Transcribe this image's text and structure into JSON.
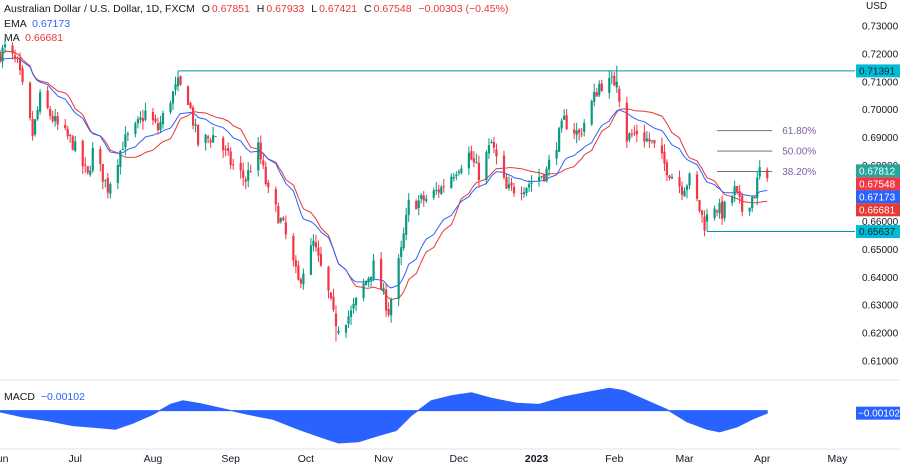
{
  "header": {
    "title": "Australian Dollar / U.S. Dollar, 1D, FXCM",
    "ohlc": [
      {
        "label": "O",
        "value": "0.67851"
      },
      {
        "label": "H",
        "value": "0.67933"
      },
      {
        "label": "L",
        "value": "0.67421"
      },
      {
        "label": "C",
        "value": "0.67548"
      }
    ],
    "change": "−0.00303 (−0.45%)",
    "ema_label": "EMA",
    "ema_value": "0.67173",
    "ma_label": "MA",
    "ma_value": "0.66681"
  },
  "macd": {
    "label": "MACD",
    "value": "−0.00102",
    "axis_value": "−0.00102"
  },
  "colors": {
    "up": "#089981",
    "down": "#f23645",
    "ema": "#2962ff",
    "ma": "#e53935",
    "macd_fill": "#2962ff",
    "level_line": "#0097a7",
    "fib": "#7b5ea7"
  },
  "chart_data": {
    "type": "candlestick",
    "symbol": "AUD/USD",
    "timeframe": "1D",
    "currency_label": "USD",
    "ylim": [
      0.605,
      0.735
    ],
    "y_ticks": [
      0.61,
      0.62,
      0.63,
      0.64,
      0.65,
      0.66,
      0.67,
      0.68,
      0.69,
      0.7,
      0.71,
      0.72,
      0.73
    ],
    "y_tick_labels": [
      "0.61000",
      "0.62000",
      "0.63000",
      "0.64000",
      "0.65000",
      "0.66000",
      "0.67000",
      "0.68000",
      "0.69000",
      "0.70000",
      "0.71000",
      "0.72000",
      "0.73000"
    ],
    "x_range": [
      "2022-06-01",
      "2023-05-08"
    ],
    "x_ticks": [
      {
        "date": "2022-06-01",
        "label": "Jun"
      },
      {
        "date": "2022-07-01",
        "label": "Jul"
      },
      {
        "date": "2022-08-01",
        "label": "Aug"
      },
      {
        "date": "2022-09-01",
        "label": "Sep"
      },
      {
        "date": "2022-10-01",
        "label": "Oct"
      },
      {
        "date": "2022-11-01",
        "label": "Nov"
      },
      {
        "date": "2022-12-01",
        "label": "Dec"
      },
      {
        "date": "2023-01-01",
        "label": "2023",
        "bold": true
      },
      {
        "date": "2023-02-01",
        "label": "Feb"
      },
      {
        "date": "2023-03-01",
        "label": "Mar"
      },
      {
        "date": "2023-04-01",
        "label": "Apr"
      },
      {
        "date": "2023-05-01",
        "label": "May"
      }
    ],
    "anchors": [
      [
        "2022-06-01",
        0.72
      ],
      [
        "2022-06-03",
        0.722
      ],
      [
        "2022-06-08",
        0.716
      ],
      [
        "2022-06-14",
        0.691
      ],
      [
        "2022-06-17",
        0.704
      ],
      [
        "2022-06-24",
        0.694
      ],
      [
        "2022-06-30",
        0.688
      ],
      [
        "2022-07-06",
        0.676
      ],
      [
        "2022-07-08",
        0.685
      ],
      [
        "2022-07-14",
        0.672
      ],
      [
        "2022-07-20",
        0.688
      ],
      [
        "2022-07-25",
        0.693
      ],
      [
        "2022-07-29",
        0.699
      ],
      [
        "2022-08-03",
        0.693
      ],
      [
        "2022-08-08",
        0.704
      ],
      [
        "2022-08-11",
        0.709
      ],
      [
        "2022-08-15",
        0.704
      ],
      [
        "2022-08-19",
        0.688
      ],
      [
        "2022-08-26",
        0.691
      ],
      [
        "2022-09-01",
        0.681
      ],
      [
        "2022-09-07",
        0.675
      ],
      [
        "2022-09-12",
        0.686
      ],
      [
        "2022-09-16",
        0.67
      ],
      [
        "2022-09-22",
        0.658
      ],
      [
        "2022-09-28",
        0.638
      ],
      [
        "2022-10-04",
        0.652
      ],
      [
        "2022-10-10",
        0.634
      ],
      [
        "2022-10-13",
        0.622
      ],
      [
        "2022-10-19",
        0.627
      ],
      [
        "2022-10-24",
        0.637
      ],
      [
        "2022-10-28",
        0.644
      ],
      [
        "2022-11-03",
        0.628
      ],
      [
        "2022-11-08",
        0.649
      ],
      [
        "2022-11-11",
        0.666
      ],
      [
        "2022-11-18",
        0.668
      ],
      [
        "2022-11-24",
        0.672
      ],
      [
        "2022-11-30",
        0.679
      ],
      [
        "2022-12-05",
        0.684
      ],
      [
        "2022-12-09",
        0.677
      ],
      [
        "2022-12-14",
        0.688
      ],
      [
        "2022-12-20",
        0.671
      ],
      [
        "2022-12-28",
        0.673
      ],
      [
        "2023-01-05",
        0.678
      ],
      [
        "2023-01-12",
        0.696
      ],
      [
        "2023-01-18",
        0.691
      ],
      [
        "2023-01-26",
        0.709
      ],
      [
        "2023-02-02",
        0.71
      ],
      [
        "2023-02-06",
        0.69
      ],
      [
        "2023-02-10",
        0.692
      ],
      [
        "2023-02-16",
        0.688
      ],
      [
        "2023-02-22",
        0.679
      ],
      [
        "2023-02-28",
        0.672
      ],
      [
        "2023-03-03",
        0.675
      ],
      [
        "2023-03-09",
        0.659
      ],
      [
        "2023-03-13",
        0.666
      ],
      [
        "2023-03-16",
        0.663
      ],
      [
        "2023-03-21",
        0.671
      ],
      [
        "2023-03-24",
        0.664
      ],
      [
        "2023-03-29",
        0.67
      ],
      [
        "2023-03-31",
        0.6785
      ],
      [
        "2023-04-03",
        0.6755
      ]
    ],
    "emphasized_candles": [
      {
        "date": "2023-02-02",
        "open": 0.708,
        "high": 0.7158,
        "low": 0.706,
        "close": 0.71
      },
      {
        "date": "2023-03-10",
        "open": 0.66,
        "high": 0.6645,
        "low": 0.6564,
        "close": 0.6625
      },
      {
        "date": "2022-10-13",
        "open": 0.627,
        "high": 0.63,
        "low": 0.617,
        "close": 0.6225
      }
    ],
    "last_candle": {
      "date": "2023-04-03",
      "open": 0.67851,
      "high": 0.67933,
      "low": 0.67421,
      "close": 0.67548
    },
    "levels": [
      {
        "value": 0.71391,
        "label": "0.71391",
        "from": "2022-08-11",
        "to_axis": true
      },
      {
        "value": 0.65637,
        "label": "0.65637",
        "from": "2023-03-10",
        "to_axis": true
      }
    ],
    "fibonacci": [
      {
        "label": "38.20%",
        "value": 0.6779
      },
      {
        "label": "50.00%",
        "value": 0.6852
      },
      {
        "label": "61.80%",
        "value": 0.6925
      }
    ],
    "fib_span": [
      "2023-03-14",
      "2023-04-05"
    ],
    "price_badges": [
      {
        "value": 0.67812,
        "label": "0.67812",
        "color": "#26a69a"
      },
      {
        "value": 0.67548,
        "label": "0.67548",
        "color": "#f23645"
      },
      {
        "value": 0.67173,
        "label": "0.67173",
        "color": "#2962ff"
      },
      {
        "value": 0.66681,
        "label": "0.66681",
        "color": "#e53935"
      }
    ],
    "macd_series": [
      [
        "2022-06-01",
        -0.0005
      ],
      [
        "2022-06-10",
        -0.0025
      ],
      [
        "2022-06-20",
        -0.004
      ],
      [
        "2022-06-30",
        -0.006
      ],
      [
        "2022-07-10",
        -0.0068
      ],
      [
        "2022-07-17",
        -0.0075
      ],
      [
        "2022-07-24",
        -0.005
      ],
      [
        "2022-08-01",
        -0.0015
      ],
      [
        "2022-08-08",
        0.0025
      ],
      [
        "2022-08-13",
        0.004
      ],
      [
        "2022-08-20",
        0.0028
      ],
      [
        "2022-08-30",
        0.0005
      ],
      [
        "2022-09-08",
        -0.0015
      ],
      [
        "2022-09-18",
        -0.0035
      ],
      [
        "2022-09-28",
        -0.0075
      ],
      [
        "2022-10-08",
        -0.011
      ],
      [
        "2022-10-14",
        -0.013
      ],
      [
        "2022-10-22",
        -0.0125
      ],
      [
        "2022-10-30",
        -0.01
      ],
      [
        "2022-11-06",
        -0.008
      ],
      [
        "2022-11-12",
        -0.002
      ],
      [
        "2022-11-20",
        0.004
      ],
      [
        "2022-11-28",
        0.006
      ],
      [
        "2022-12-06",
        0.0072
      ],
      [
        "2022-12-14",
        0.005
      ],
      [
        "2022-12-24",
        0.003
      ],
      [
        "2023-01-02",
        0.0025
      ],
      [
        "2023-01-12",
        0.0055
      ],
      [
        "2023-01-22",
        0.0075
      ],
      [
        "2023-01-30",
        0.009
      ],
      [
        "2023-02-05",
        0.008
      ],
      [
        "2023-02-14",
        0.004
      ],
      [
        "2023-02-22",
        0.0005
      ],
      [
        "2023-03-02",
        -0.0045
      ],
      [
        "2023-03-10",
        -0.0075
      ],
      [
        "2023-03-15",
        -0.0085
      ],
      [
        "2023-03-22",
        -0.0065
      ],
      [
        "2023-03-29",
        -0.003
      ],
      [
        "2023-04-03",
        -0.00102
      ]
    ],
    "macd_ylim": [
      -0.015,
      0.0115
    ]
  }
}
